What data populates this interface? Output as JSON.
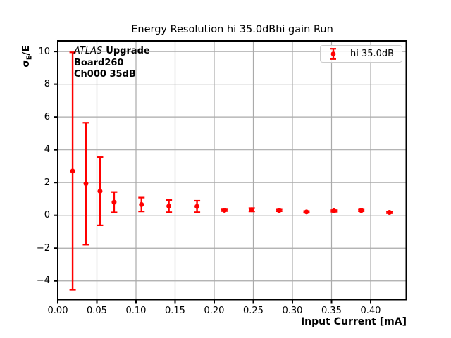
{
  "title": "Energy Resolution hi 35.0dBhi gain Run",
  "annotation": {
    "atlas": "ATLAS",
    "atlas_suffix": "Upgrade",
    "line2": "Board260",
    "line3": "Ch000 35dB"
  },
  "legend": {
    "label": "hi 35.0dB"
  },
  "ylabel_parts": {
    "sigma": "σ",
    "sub": "E",
    "rest": "/E"
  },
  "colors": {
    "series": "#ff0000",
    "grid": "#aaaaaa",
    "spine": "#000000",
    "legend_border": "#cccccc",
    "background": "#ffffff"
  },
  "chart_data": {
    "type": "scatter",
    "title": "Energy Resolution hi 35.0dBhi gain Run",
    "xlabel": "Input Current [mA]",
    "ylabel": "σE/E",
    "grid": true,
    "legend_position": "upper right",
    "legend_entries": [
      "hi 35.0dB"
    ],
    "xlim": [
      0,
      0.4455
    ],
    "ylim": [
      -5.15,
      10.65
    ],
    "xticks": [
      0,
      0.05,
      0.1,
      0.15,
      0.2,
      0.25,
      0.3,
      0.35,
      0.4
    ],
    "xtick_labels": [
      "0.00",
      "0.05",
      "0.10",
      "0.15",
      "0.20",
      "0.25",
      "0.30",
      "0.35",
      "0.40"
    ],
    "yticks": [
      -4,
      -2,
      0,
      2,
      4,
      6,
      8,
      10
    ],
    "ytick_labels": [
      "−4",
      "−2",
      "0",
      "2",
      "4",
      "6",
      "8",
      "10"
    ],
    "series": [
      {
        "name": "hi 35.0dB",
        "marker": "circle",
        "points": [
          {
            "x": 0.019,
            "y": 2.7,
            "yerr": 7.25
          },
          {
            "x": 0.036,
            "y": 1.93,
            "yerr": 3.72
          },
          {
            "x": 0.054,
            "y": 1.47,
            "yerr": 2.08
          },
          {
            "x": 0.072,
            "y": 0.8,
            "yerr": 0.62
          },
          {
            "x": 0.107,
            "y": 0.66,
            "yerr": 0.42
          },
          {
            "x": 0.142,
            "y": 0.56,
            "yerr": 0.37
          },
          {
            "x": 0.178,
            "y": 0.54,
            "yerr": 0.35
          },
          {
            "x": 0.213,
            "y": 0.31,
            "yerr": 0.05
          },
          {
            "x": 0.248,
            "y": 0.34,
            "yerr": 0.1
          },
          {
            "x": 0.283,
            "y": 0.3,
            "yerr": 0.05
          },
          {
            "x": 0.318,
            "y": 0.21,
            "yerr": 0.05
          },
          {
            "x": 0.353,
            "y": 0.27,
            "yerr": 0.05
          },
          {
            "x": 0.388,
            "y": 0.3,
            "yerr": 0.05
          },
          {
            "x": 0.424,
            "y": 0.18,
            "yerr": 0.05
          }
        ]
      }
    ]
  }
}
